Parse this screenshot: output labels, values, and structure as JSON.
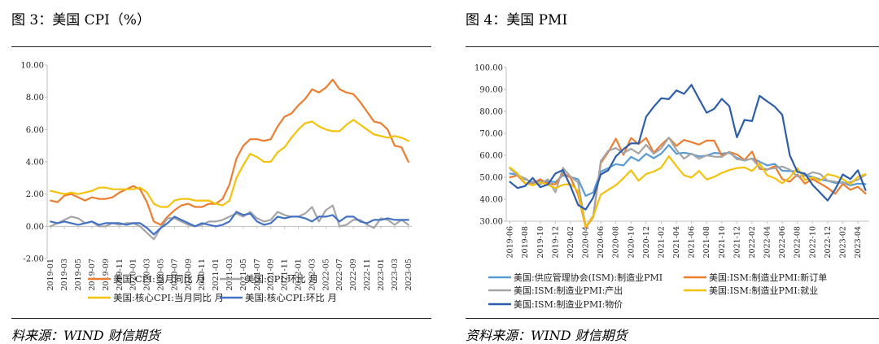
{
  "left": {
    "title": "图 3：美国 CPI（%）",
    "source": "料来源：WIND  财信期货",
    "chart_data": {
      "type": "line",
      "x": [
        "2019-01",
        "2019-02",
        "2019-03",
        "2019-04",
        "2019-05",
        "2019-06",
        "2019-07",
        "2019-08",
        "2019-09",
        "2019-10",
        "2019-11",
        "2019-12",
        "2020-01",
        "2020-02",
        "2020-03",
        "2020-04",
        "2020-05",
        "2020-06",
        "2020-07",
        "2020-08",
        "2020-09",
        "2020-10",
        "2020-11",
        "2020-12",
        "2021-01",
        "2021-02",
        "2021-03",
        "2021-04",
        "2021-05",
        "2021-06",
        "2021-07",
        "2021-08",
        "2021-09",
        "2021-10",
        "2021-11",
        "2021-12",
        "2022-01",
        "2022-02",
        "2022-03",
        "2022-04",
        "2022-05",
        "2022-06",
        "2022-07",
        "2022-08",
        "2022-09",
        "2022-10",
        "2022-11",
        "2022-12",
        "2023-01",
        "2023-02",
        "2023-03",
        "2023-04",
        "2023-05"
      ],
      "x_tick_labels": [
        "2019-01",
        "2019-03",
        "2019-05",
        "2019-07",
        "2019-09",
        "2019-11",
        "2020-01",
        "2020-03",
        "2020-05",
        "2020-07",
        "2020-09",
        "2020-11",
        "2021-01",
        "2021-03",
        "2021-05",
        "2021-07",
        "2021-09",
        "2021-11",
        "2022-01",
        "2022-03",
        "2022-05",
        "2022-07",
        "2022-09",
        "2022-11",
        "2023-01",
        "2023-03",
        "2023-05"
      ],
      "y_tick_labels": [
        "-2.00",
        "0.00",
        "2.00",
        "4.00",
        "6.00",
        "8.00",
        "10.00"
      ],
      "ylim": [
        -2,
        10
      ],
      "series": [
        {
          "name": "美国:CPI:当月同比 月",
          "color": "#ED7D31",
          "values": [
            1.6,
            1.5,
            1.9,
            2.0,
            1.8,
            1.6,
            1.8,
            1.7,
            1.7,
            1.8,
            2.1,
            2.3,
            2.5,
            2.3,
            1.5,
            0.3,
            0.1,
            0.6,
            1.0,
            1.3,
            1.4,
            1.2,
            1.2,
            1.4,
            1.4,
            1.7,
            2.6,
            4.2,
            5.0,
            5.4,
            5.4,
            5.3,
            5.4,
            6.2,
            6.8,
            7.0,
            7.5,
            7.9,
            8.5,
            8.3,
            8.6,
            9.1,
            8.5,
            8.3,
            8.2,
            7.7,
            7.1,
            6.5,
            6.4,
            6.0,
            5.0,
            4.9,
            4.0
          ]
        },
        {
          "name": "美国:CPI:环比 月",
          "color": "#A5A5A5",
          "values": [
            0.0,
            0.2,
            0.4,
            0.6,
            0.5,
            0.2,
            0.3,
            0.0,
            0.0,
            0.2,
            0.1,
            0.2,
            0.2,
            0.0,
            -0.4,
            -0.8,
            -0.1,
            0.5,
            0.5,
            0.3,
            0.1,
            0.0,
            0.1,
            0.3,
            0.3,
            0.4,
            0.6,
            0.8,
            0.6,
            0.9,
            0.5,
            0.3,
            0.4,
            0.9,
            0.7,
            0.6,
            0.6,
            0.8,
            1.2,
            0.3,
            1.0,
            1.3,
            0.0,
            0.1,
            0.4,
            0.4,
            0.1,
            -0.1,
            0.5,
            0.4,
            0.1,
            0.4,
            0.1
          ]
        },
        {
          "name": "美国:核心CPI:当月同比 月",
          "color": "#F4C20D",
          "values": [
            2.2,
            2.1,
            2.0,
            2.1,
            2.0,
            2.1,
            2.2,
            2.4,
            2.4,
            2.3,
            2.3,
            2.3,
            2.3,
            2.4,
            2.1,
            1.4,
            1.2,
            1.2,
            1.6,
            1.7,
            1.7,
            1.6,
            1.6,
            1.6,
            1.4,
            1.3,
            1.6,
            3.0,
            3.8,
            4.5,
            4.3,
            4.0,
            4.0,
            4.6,
            4.9,
            5.5,
            6.0,
            6.4,
            6.5,
            6.2,
            6.0,
            5.9,
            5.9,
            6.3,
            6.6,
            6.3,
            6.0,
            5.7,
            5.6,
            5.5,
            5.6,
            5.5,
            5.3
          ]
        },
        {
          "name": "美国:核心CPI:环比 月",
          "color": "#4472C4",
          "values": [
            0.3,
            0.2,
            0.3,
            0.2,
            0.1,
            0.2,
            0.3,
            0.1,
            0.2,
            0.2,
            0.2,
            0.1,
            0.2,
            0.2,
            -0.1,
            -0.5,
            -0.1,
            0.2,
            0.6,
            0.4,
            0.2,
            0.0,
            0.2,
            0.1,
            0.0,
            0.1,
            0.3,
            0.9,
            0.7,
            0.8,
            0.3,
            0.1,
            0.2,
            0.6,
            0.5,
            0.6,
            0.6,
            0.5,
            0.3,
            0.6,
            0.6,
            0.7,
            0.3,
            0.6,
            0.6,
            0.3,
            0.2,
            0.4,
            0.4,
            0.5,
            0.4,
            0.4,
            0.4
          ]
        }
      ]
    }
  },
  "right": {
    "title": "图 4：美国 PMI",
    "source": "资料来源：WIND  财信期货",
    "chart_data": {
      "type": "line",
      "x": [
        "2019-06",
        "2019-07",
        "2019-08",
        "2019-09",
        "2019-10",
        "2019-11",
        "2019-12",
        "2020-01",
        "2020-02",
        "2020-03",
        "2020-04",
        "2020-05",
        "2020-06",
        "2020-07",
        "2020-08",
        "2020-09",
        "2020-10",
        "2020-11",
        "2020-12",
        "2021-01",
        "2021-02",
        "2021-03",
        "2021-04",
        "2021-05",
        "2021-06",
        "2021-07",
        "2021-08",
        "2021-09",
        "2021-10",
        "2021-11",
        "2021-12",
        "2022-01",
        "2022-02",
        "2022-03",
        "2022-04",
        "2022-05",
        "2022-06",
        "2022-07",
        "2022-08",
        "2022-09",
        "2022-10",
        "2022-11",
        "2022-12",
        "2023-01",
        "2023-02",
        "2023-03",
        "2023-04",
        "2023-05"
      ],
      "x_tick_labels": [
        "2019-06",
        "2019-08",
        "2019-10",
        "2019-12",
        "2020-02",
        "2020-04",
        "2020-06",
        "2020-08",
        "2020-10",
        "2020-12",
        "2021-02",
        "2021-04",
        "2021-06",
        "2021-08",
        "2021-10",
        "2021-12",
        "2022-02",
        "2022-04",
        "2022-06",
        "2022-08",
        "2022-10",
        "2022-12",
        "2023-02",
        "2023-04"
      ],
      "y_tick_labels": [
        "30.00",
        "40.00",
        "50.00",
        "60.00",
        "70.00",
        "80.00",
        "90.00",
        "100.00"
      ],
      "ylim": [
        30,
        100
      ],
      "series": [
        {
          "name": "美国:供应管理协会(ISM):制造业PMI",
          "color": "#5B9BD5",
          "values": [
            51.7,
            51.2,
            49.1,
            47.8,
            48.3,
            48.1,
            47.8,
            50.9,
            50.1,
            49.1,
            41.5,
            43.1,
            52.6,
            54.2,
            56.0,
            55.4,
            59.3,
            57.5,
            60.7,
            58.7,
            60.8,
            64.7,
            60.7,
            61.2,
            60.6,
            59.5,
            59.9,
            61.1,
            60.8,
            61.1,
            58.8,
            57.6,
            58.6,
            57.1,
            55.4,
            56.1,
            53.0,
            52.8,
            52.8,
            50.9,
            50.2,
            49.0,
            48.4,
            47.4,
            47.7,
            46.3,
            47.1,
            46.9
          ]
        },
        {
          "name": "美国:ISM:制造业PMI:新订单",
          "color": "#ED7D31",
          "values": [
            50.0,
            50.8,
            47.2,
            47.3,
            49.1,
            47.2,
            46.8,
            52.0,
            49.8,
            42.2,
            27.1,
            31.8,
            56.4,
            61.5,
            67.6,
            60.2,
            67.9,
            65.1,
            67.9,
            61.1,
            64.8,
            68.0,
            64.3,
            67.0,
            66.0,
            64.9,
            66.7,
            66.7,
            59.8,
            61.5,
            60.4,
            57.9,
            61.7,
            53.8,
            53.5,
            55.1,
            49.2,
            48.0,
            51.3,
            47.1,
            49.2,
            47.2,
            45.2,
            42.5,
            47.0,
            44.3,
            45.7,
            42.6
          ]
        },
        {
          "name": "美国:ISM:制造业PMI:产出",
          "color": "#A5A5A5",
          "values": [
            54.1,
            50.8,
            49.5,
            47.3,
            46.7,
            49.1,
            43.2,
            54.3,
            50.3,
            47.7,
            27.5,
            32.5,
            57.3,
            62.1,
            63.3,
            61.0,
            63.0,
            60.8,
            64.8,
            60.7,
            63.2,
            68.1,
            62.5,
            58.5,
            60.8,
            58.4,
            60.0,
            59.4,
            59.3,
            61.5,
            58.2,
            57.8,
            58.5,
            54.5,
            53.6,
            54.2,
            54.9,
            53.5,
            50.4,
            50.6,
            52.3,
            51.5,
            48.5,
            48.0,
            47.3,
            47.8,
            48.9,
            51.1
          ]
        },
        {
          "name": "美国:ISM:制造业PMI:就业",
          "color": "#F4C20D",
          "values": [
            54.5,
            51.7,
            47.4,
            46.3,
            47.7,
            46.6,
            45.1,
            46.6,
            46.9,
            43.8,
            27.5,
            32.1,
            42.1,
            44.3,
            46.4,
            49.6,
            53.2,
            48.4,
            51.5,
            52.6,
            54.4,
            59.6,
            55.1,
            50.9,
            49.9,
            52.9,
            49.0,
            50.2,
            52.0,
            53.3,
            54.2,
            54.5,
            52.9,
            56.3,
            50.9,
            49.6,
            47.3,
            49.9,
            54.2,
            48.7,
            50.0,
            48.4,
            51.4,
            50.6,
            49.1,
            46.9,
            50.2,
            51.4
          ]
        },
        {
          "name": "美国:ISM:制造业PMI:物价",
          "color": "#2E5EAA",
          "values": [
            47.9,
            45.1,
            46.0,
            49.7,
            45.5,
            46.7,
            51.7,
            53.3,
            45.9,
            37.4,
            35.3,
            40.8,
            51.3,
            53.2,
            59.5,
            62.8,
            65.5,
            65.4,
            77.6,
            82.1,
            86.0,
            85.6,
            89.6,
            88.0,
            92.1,
            85.7,
            79.4,
            81.2,
            85.7,
            82.4,
            68.2,
            76.1,
            75.6,
            87.1,
            84.6,
            82.2,
            78.5,
            60.0,
            52.5,
            51.7,
            46.6,
            43.0,
            39.4,
            44.5,
            51.3,
            49.2,
            53.2,
            44.2
          ]
        }
      ]
    }
  }
}
